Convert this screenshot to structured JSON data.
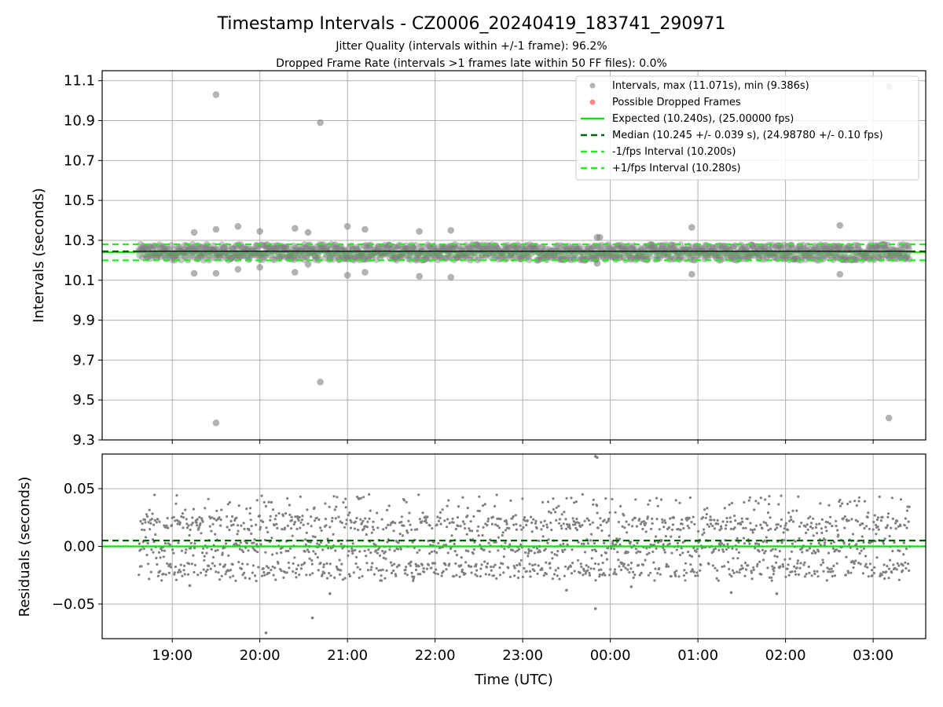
{
  "figure": {
    "title": "Timestamp Intervals - CZ0006_20240419_183741_290971",
    "subtitle_line1": "Jitter Quality (intervals within +/-1 frame): 96.2%",
    "subtitle_line2": "Dropped Frame Rate (intervals >1 frames late within 50 FF files): 0.0%"
  },
  "colors": {
    "intervals": "#808080",
    "dropped": "#ff3333",
    "expected": "#00e600",
    "median": "#006400",
    "fps_bounds": "#22ee22",
    "grid": "#b0b0b0"
  },
  "chart_data": [
    {
      "type": "scatter",
      "panel": "intervals",
      "xlabel": "",
      "ylabel": "Intervals (seconds)",
      "x_unit": "hours after 00:00 UTC (19:00 = -5)",
      "xlim": [
        -5.8,
        3.6
      ],
      "ylim": [
        9.3,
        11.15
      ],
      "yticks": [
        9.3,
        9.5,
        9.7,
        9.9,
        10.1,
        10.3,
        10.5,
        10.7,
        10.9,
        11.1
      ],
      "ytick_labels": [
        "9.3",
        "9.5",
        "9.7",
        "9.9",
        "10.1",
        "10.3",
        "10.5",
        "10.7",
        "10.9",
        "11.1"
      ],
      "xticks": [
        -5,
        -4,
        -3,
        -2,
        -1,
        0,
        1,
        2,
        3
      ],
      "xtick_labels": [
        "19:00",
        "20:00",
        "21:00",
        "22:00",
        "23:00",
        "00:00",
        "01:00",
        "02:00",
        "03:00"
      ],
      "grid": true,
      "legend_position": "top-right",
      "legend": [
        "Intervals, max (11.071s), min (9.386s)",
        "Possible Dropped Frames",
        "Expected (10.240s), (25.00000 fps)",
        "Median (10.245 +/- 0.039 s), (24.98780 +/- 0.10 fps)",
        "-1/fps Interval (10.200s)",
        "+1/fps Interval (10.280s)"
      ],
      "series": [
        {
          "name": "Intervals, max (11.071s), min (9.386s)",
          "band": {
            "x_start": -5.38,
            "x_end": 3.42,
            "y_low": 10.2,
            "y_high": 10.28
          },
          "outliers": [
            {
              "x": -4.5,
              "y": 11.03
            },
            {
              "x": -3.31,
              "y": 10.89
            },
            {
              "x": -3.31,
              "y": 9.59
            },
            {
              "x": 3.18,
              "y": 11.07
            },
            {
              "x": 3.18,
              "y": 9.41
            },
            {
              "x": -4.5,
              "y": 9.386
            },
            {
              "x": -4.5,
              "y": 10.355
            },
            {
              "x": -4.75,
              "y": 10.34
            },
            {
              "x": -4.25,
              "y": 10.37
            },
            {
              "x": -4.0,
              "y": 10.345
            },
            {
              "x": -3.6,
              "y": 10.36
            },
            {
              "x": -3.45,
              "y": 10.34
            },
            {
              "x": -3.0,
              "y": 10.37
            },
            {
              "x": -2.8,
              "y": 10.355
            },
            {
              "x": -2.18,
              "y": 10.345
            },
            {
              "x": -1.82,
              "y": 10.35
            },
            {
              "x": -0.15,
              "y": 10.315
            },
            {
              "x": -0.12,
              "y": 10.315
            },
            {
              "x": 0.93,
              "y": 10.365
            },
            {
              "x": 2.62,
              "y": 10.375
            },
            {
              "x": -4.75,
              "y": 10.135
            },
            {
              "x": -4.5,
              "y": 10.135
            },
            {
              "x": -4.25,
              "y": 10.155
            },
            {
              "x": -4.0,
              "y": 10.165
            },
            {
              "x": -3.6,
              "y": 10.14
            },
            {
              "x": -3.45,
              "y": 10.18
            },
            {
              "x": -3.0,
              "y": 10.125
            },
            {
              "x": -2.8,
              "y": 10.14
            },
            {
              "x": -2.18,
              "y": 10.12
            },
            {
              "x": -1.82,
              "y": 10.115
            },
            {
              "x": -0.15,
              "y": 10.185
            },
            {
              "x": 0.93,
              "y": 10.13
            },
            {
              "x": 2.62,
              "y": 10.13
            }
          ]
        }
      ],
      "reference_lines": [
        {
          "name": "Expected (10.240s), (25.00000 fps)",
          "y": 10.24,
          "style": "solid"
        },
        {
          "name": "Median (10.245 +/- 0.039 s), (24.98780 +/- 0.10 fps)",
          "y": 10.245,
          "style": "dashed"
        },
        {
          "name": "-1/fps Interval (10.200s)",
          "y": 10.2,
          "style": "dashed"
        },
        {
          "name": "+1/fps Interval (10.280s)",
          "y": 10.28,
          "style": "dashed"
        }
      ]
    },
    {
      "type": "scatter",
      "panel": "residuals",
      "xlabel": "Time (UTC)",
      "ylabel": "Residuals (seconds)",
      "xlim": [
        -5.8,
        3.6
      ],
      "ylim": [
        -0.08,
        0.08
      ],
      "yticks": [
        -0.05,
        0.0,
        0.05
      ],
      "ytick_labels": [
        "−0.05",
        "0.00",
        "0.05"
      ],
      "xticks": [
        -5,
        -4,
        -3,
        -2,
        -1,
        0,
        1,
        2,
        3
      ],
      "xtick_labels": [
        "19:00",
        "20:00",
        "21:00",
        "22:00",
        "23:00",
        "00:00",
        "01:00",
        "02:00",
        "03:00"
      ],
      "grid": true,
      "residual_cluster_levels": [
        -0.02,
        0.0,
        0.02
      ],
      "residual_spread": [
        -0.03,
        0.045
      ],
      "outliers": [
        {
          "x": -0.17,
          "y": 0.078
        },
        {
          "x": -0.15,
          "y": 0.077
        },
        {
          "x": -3.93,
          "y": -0.075
        },
        {
          "x": -3.4,
          "y": -0.062
        },
        {
          "x": -0.17,
          "y": -0.054
        },
        {
          "x": 1.9,
          "y": -0.041
        },
        {
          "x": -3.2,
          "y": -0.041
        },
        {
          "x": 1.38,
          "y": -0.04
        },
        {
          "x": -0.5,
          "y": -0.038
        },
        {
          "x": -4.8,
          "y": -0.034
        },
        {
          "x": 0.24,
          "y": -0.035
        }
      ],
      "reference_lines": [
        {
          "name": "Expected",
          "y": 0.0,
          "style": "solid"
        },
        {
          "name": "Median",
          "y": 0.005,
          "style": "dashed"
        }
      ]
    }
  ]
}
